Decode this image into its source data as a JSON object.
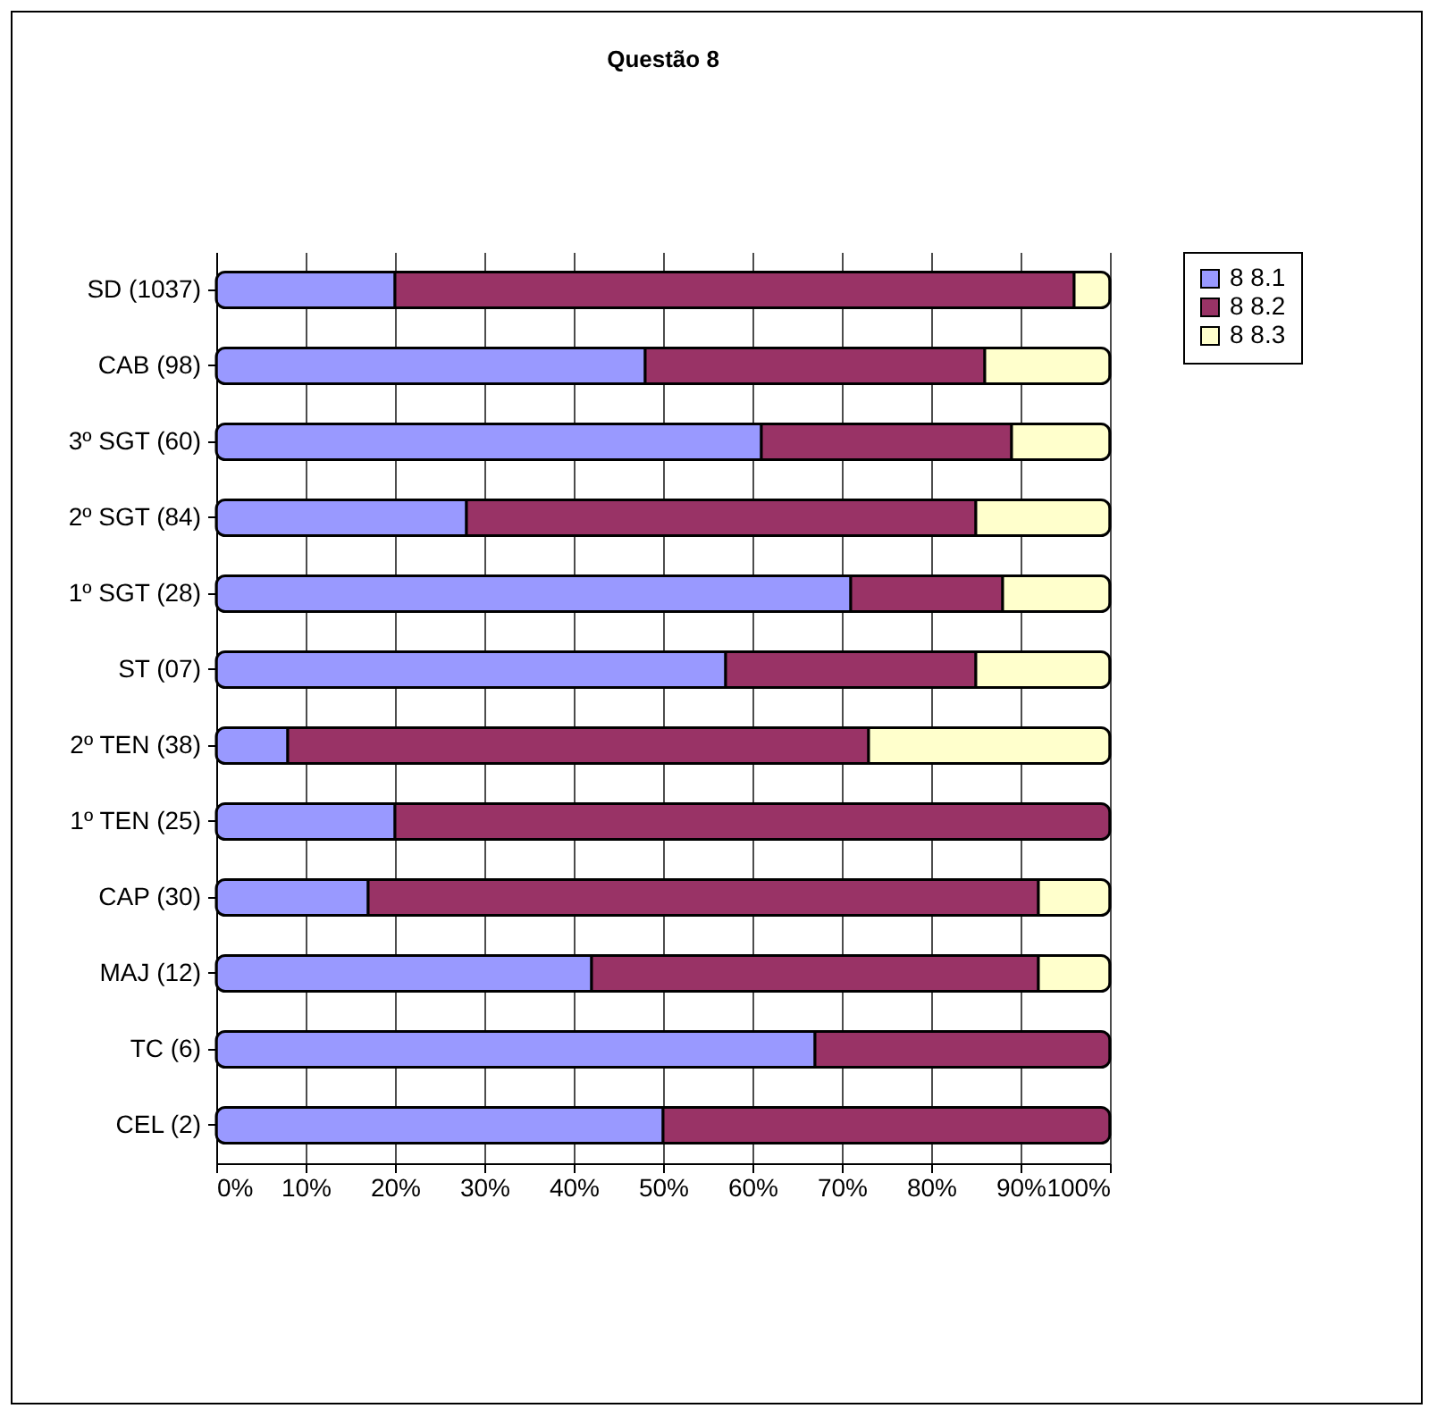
{
  "chart_data": {
    "type": "bar",
    "title": "Questão 8",
    "orientation": "horizontal",
    "stacked": true,
    "categories": [
      "SD (1037)",
      "CAB (98)",
      "3º SGT (60)",
      "2º SGT (84)",
      "1º SGT (28)",
      "ST (07)",
      "2º TEN (38)",
      "1º TEN (25)",
      "CAP (30)",
      "MAJ (12)",
      "TC (6)",
      "CEL (2)"
    ],
    "series": [
      {
        "name": "8 8.1",
        "color": "#9999ff",
        "values": [
          20,
          48,
          61,
          28,
          71,
          57,
          8,
          20,
          17,
          42,
          67,
          50
        ]
      },
      {
        "name": "8 8.2",
        "color": "#993366",
        "values": [
          76,
          38,
          28,
          57,
          17,
          28,
          65,
          80,
          75,
          50,
          33,
          50
        ]
      },
      {
        "name": "8 8.3",
        "color": "#ffffcc",
        "values": [
          4,
          14,
          11,
          15,
          12,
          15,
          27,
          0,
          8,
          8,
          0,
          0
        ]
      }
    ],
    "xlim": [
      0,
      100
    ],
    "xticks": [
      {
        "value": 0,
        "label": "0%"
      },
      {
        "value": 10,
        "label": "10%"
      },
      {
        "value": 20,
        "label": "20%"
      },
      {
        "value": 30,
        "label": "30%"
      },
      {
        "value": 40,
        "label": "40%"
      },
      {
        "value": 50,
        "label": "50%"
      },
      {
        "value": 60,
        "label": "60%"
      },
      {
        "value": 70,
        "label": "70%"
      },
      {
        "value": 80,
        "label": "80%"
      },
      {
        "value": 90,
        "label": "90%"
      },
      {
        "value": 100,
        "label": "100%"
      }
    ],
    "grid": "x",
    "legend": "right"
  }
}
